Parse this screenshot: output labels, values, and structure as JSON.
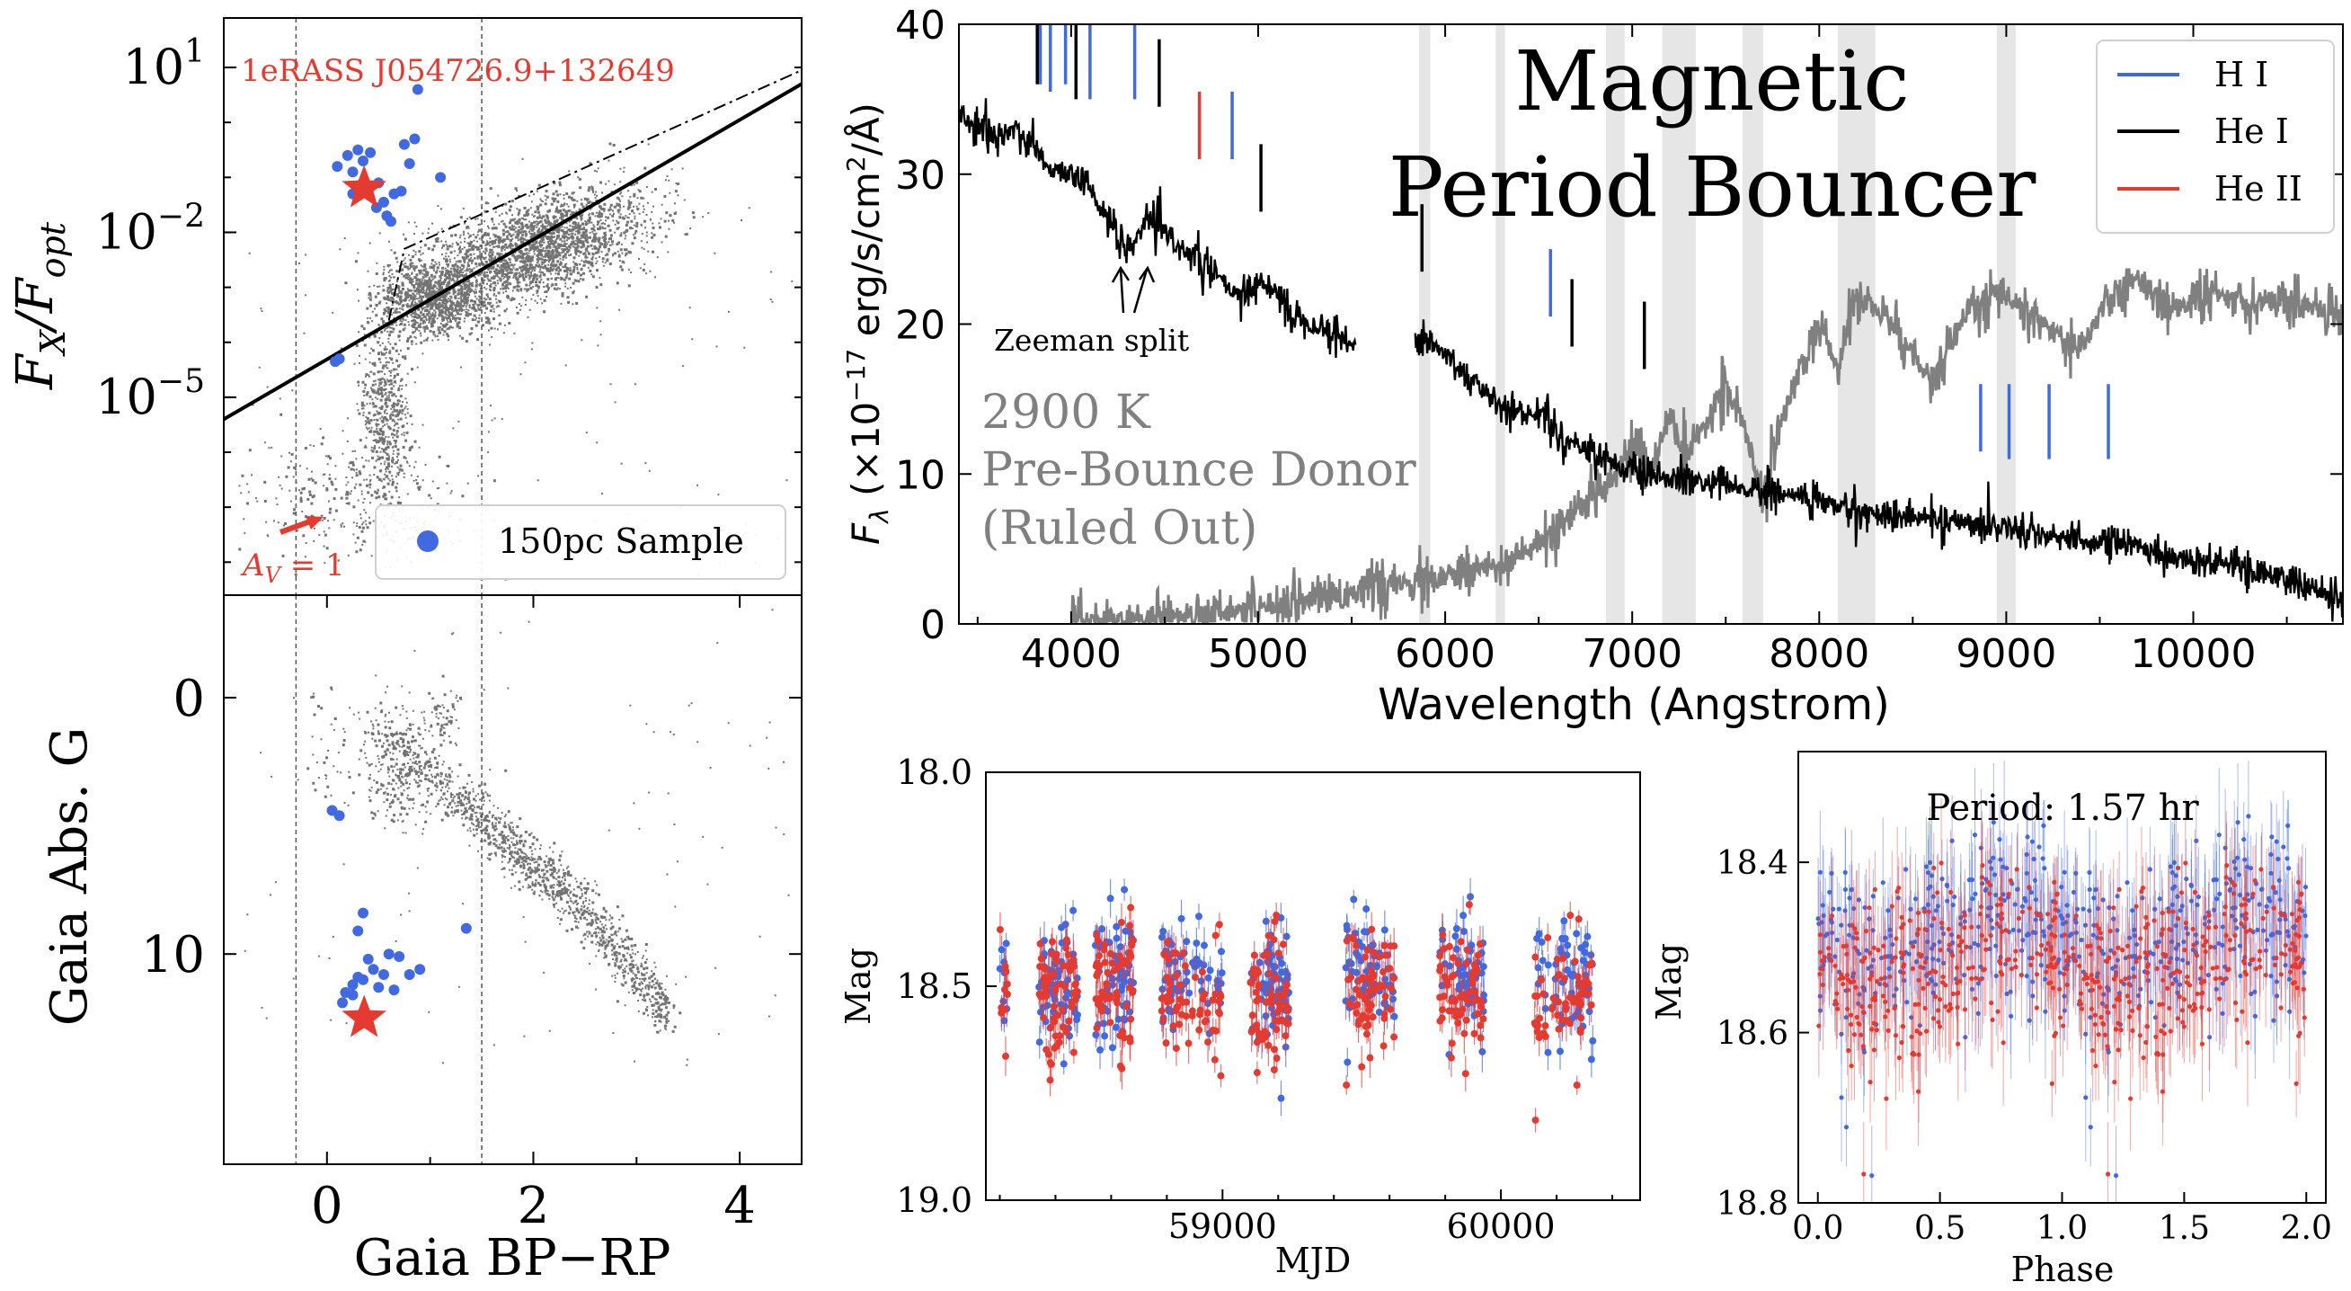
{
  "chart_data": [
    {
      "id": "xray_ratio",
      "type": "scatter",
      "ylabel_main": "F",
      "ylabel_sub1": "X",
      "ylabel_sep": "/F",
      "ylabel_sub2": "opt",
      "yscale": "log",
      "xlim": [
        -1,
        4.6
      ],
      "ylim_log10": [
        -8.6,
        1.9
      ],
      "yticks": [
        {
          "exp": 1,
          "text": "10",
          "sup": "1"
        },
        {
          "exp": -2,
          "text": "10",
          "sup": "−2"
        },
        {
          "exp": -5,
          "text": "10",
          "sup": "−5"
        }
      ],
      "vlines_x": [
        -0.3,
        1.5
      ],
      "threshold_solid": [
        [
          -1,
          -5.4
        ],
        [
          4.6,
          0.7
        ]
      ],
      "threshold_dashdot": [
        [
          0.6,
          -3.6
        ],
        [
          0.75,
          -2.3
        ],
        [
          4.6,
          0.95
        ]
      ],
      "target_label": "1eRASS J054726.9+132649",
      "target": {
        "x": 0.36,
        "y_log10": -1.2
      },
      "sample": [
        {
          "x": 0.1,
          "y": -0.8
        },
        {
          "x": 0.2,
          "y": -0.6
        },
        {
          "x": 0.25,
          "y": -0.9
        },
        {
          "x": 0.3,
          "y": -0.5
        },
        {
          "x": 0.35,
          "y": -0.7
        },
        {
          "x": 0.42,
          "y": -0.55
        },
        {
          "x": 0.5,
          "y": -1.1
        },
        {
          "x": 0.48,
          "y": -1.55
        },
        {
          "x": 0.55,
          "y": -1.45
        },
        {
          "x": 0.58,
          "y": -1.7
        },
        {
          "x": 0.62,
          "y": -1.8
        },
        {
          "x": 0.65,
          "y": -1.3
        },
        {
          "x": 0.72,
          "y": -1.25
        },
        {
          "x": 0.75,
          "y": -0.4
        },
        {
          "x": 0.8,
          "y": -0.75
        },
        {
          "x": 0.85,
          "y": -0.3
        },
        {
          "x": 0.88,
          "y": 0.6
        },
        {
          "x": 1.1,
          "y": -1.0
        },
        {
          "x": 0.25,
          "y": -1.3
        },
        {
          "x": 0.4,
          "y": -1.15
        },
        {
          "x": 0.12,
          "y": -4.3
        },
        {
          "x": 0.08,
          "y": -4.35
        }
      ],
      "av_label": "A",
      "av_sub": "V",
      "av_value": " = 1",
      "legend": [
        {
          "label": "150pc Sample",
          "marker": "circle",
          "color": "#4169e1"
        }
      ],
      "colors": {
        "sample": "#4169e1",
        "target": "#e53a30",
        "annotation": "#e53a30"
      }
    },
    {
      "id": "cmd",
      "type": "scatter",
      "xlabel": "Gaia BP−RP",
      "ylabel": "Gaia Abs. G",
      "xlim": [
        -1,
        4.6
      ],
      "ylim": [
        18.2,
        -4
      ],
      "xticks": [
        0,
        2,
        4
      ],
      "yticks": [
        0,
        10
      ],
      "vlines_x": [
        -0.3,
        1.5
      ],
      "target": {
        "x": 0.36,
        "y": 12.5
      },
      "sample": [
        {
          "x": 0.05,
          "y": 4.4
        },
        {
          "x": 0.12,
          "y": 4.6
        },
        {
          "x": 1.35,
          "y": 9.0
        },
        {
          "x": 0.25,
          "y": 11.2
        },
        {
          "x": 0.3,
          "y": 10.9
        },
        {
          "x": 0.18,
          "y": 11.5
        },
        {
          "x": 0.35,
          "y": 11.0
        },
        {
          "x": 0.4,
          "y": 10.2
        },
        {
          "x": 0.45,
          "y": 10.6
        },
        {
          "x": 0.5,
          "y": 11.3
        },
        {
          "x": 0.55,
          "y": 10.8
        },
        {
          "x": 0.6,
          "y": 10.0
        },
        {
          "x": 0.7,
          "y": 10.1
        },
        {
          "x": 0.8,
          "y": 10.8
        },
        {
          "x": 0.9,
          "y": 10.6
        },
        {
          "x": 0.3,
          "y": 9.1
        },
        {
          "x": 0.35,
          "y": 8.4
        },
        {
          "x": 0.25,
          "y": 11.6
        },
        {
          "x": 0.15,
          "y": 11.9
        },
        {
          "x": 0.65,
          "y": 11.4
        }
      ]
    },
    {
      "id": "spectrum",
      "type": "line",
      "xlabel": "Wavelength (Angstrom)",
      "ylabel_main": "F",
      "ylabel_sub": "λ",
      "ylabel_units": " (×10",
      "ylabel_sup1": "−17",
      "ylabel_units2": " erg/s/cm",
      "ylabel_sup2": "2",
      "ylabel_units3": "/Å)",
      "xlim": [
        3400,
        10800
      ],
      "ylim": [
        0,
        40
      ],
      "xticks": [
        4000,
        5000,
        6000,
        7000,
        8000,
        9000,
        10000
      ],
      "yticks": [
        0,
        10,
        20,
        30,
        40
      ],
      "title_line1": "Magnetic",
      "title_line2": "Period Bouncer",
      "annotation_zeeman": "Zeeman split",
      "donor_line1": "2900 K",
      "donor_line2": "Pre-Bounce Donor",
      "donor_line3": "(Ruled Out)",
      "legend": [
        {
          "label": "H I",
          "color": "#4169e1"
        },
        {
          "label": "He I",
          "color": "#000000"
        },
        {
          "label": "He II",
          "color": "#e53a30"
        }
      ],
      "object_spectrum_knots": [
        [
          3400,
          34
        ],
        [
          3500,
          33
        ],
        [
          3600,
          32.5
        ],
        [
          3700,
          33
        ],
        [
          3800,
          32
        ],
        [
          3900,
          30
        ],
        [
          4000,
          30.5
        ],
        [
          4100,
          29
        ],
        [
          4200,
          27
        ],
        [
          4300,
          24.5
        ],
        [
          4400,
          27
        ],
        [
          4500,
          26
        ],
        [
          4600,
          25
        ],
        [
          4700,
          24
        ],
        [
          4800,
          23
        ],
        [
          4900,
          21.5
        ],
        [
          5000,
          23
        ],
        [
          5100,
          22
        ],
        [
          5200,
          20.5
        ],
        [
          5300,
          20
        ],
        [
          5400,
          19.5
        ],
        [
          5500,
          18.5
        ],
        [
          5850,
          19.5
        ],
        [
          6000,
          18
        ],
        [
          6200,
          15.5
        ],
        [
          6400,
          14
        ],
        [
          6550,
          14
        ],
        [
          6600,
          12.5
        ],
        [
          6800,
          11.5
        ],
        [
          7000,
          10
        ],
        [
          7300,
          9.5
        ],
        [
          7600,
          9
        ],
        [
          7900,
          8.5
        ],
        [
          8200,
          7.5
        ],
        [
          8600,
          7
        ],
        [
          9000,
          6.5
        ],
        [
          9400,
          5.5
        ],
        [
          9600,
          5.5
        ],
        [
          9900,
          4.5
        ],
        [
          10200,
          4
        ],
        [
          10500,
          3
        ],
        [
          10800,
          1.5
        ]
      ],
      "donor_spectrum_knots": [
        [
          4000,
          0.2
        ],
        [
          4500,
          0.4
        ],
        [
          5000,
          1.2
        ],
        [
          5500,
          2.2
        ],
        [
          6000,
          3
        ],
        [
          6400,
          4.5
        ],
        [
          6600,
          6
        ],
        [
          6700,
          7.5
        ],
        [
          6900,
          10
        ],
        [
          7000,
          12
        ],
        [
          7100,
          10
        ],
        [
          7200,
          14
        ],
        [
          7300,
          11
        ],
        [
          7500,
          16
        ],
        [
          7600,
          13
        ],
        [
          7700,
          8
        ],
        [
          7800,
          14
        ],
        [
          8000,
          20
        ],
        [
          8100,
          17
        ],
        [
          8200,
          22
        ],
        [
          8400,
          20
        ],
        [
          8600,
          16
        ],
        [
          8800,
          21
        ],
        [
          9000,
          22
        ],
        [
          9200,
          20
        ],
        [
          9400,
          18
        ],
        [
          9500,
          21
        ],
        [
          9700,
          23
        ],
        [
          9900,
          21
        ],
        [
          10100,
          22
        ],
        [
          10400,
          21.5
        ],
        [
          10800,
          21
        ]
      ],
      "line_markers": [
        {
          "x": 3835,
          "ylo": 36,
          "yhi": 40,
          "color": "#4169e1"
        },
        {
          "x": 3889,
          "ylo": 35.5,
          "yhi": 40,
          "color": "#4169e1"
        },
        {
          "x": 3970,
          "ylo": 36,
          "yhi": 40,
          "color": "#4169e1"
        },
        {
          "x": 4101,
          "ylo": 35,
          "yhi": 40,
          "color": "#4169e1"
        },
        {
          "x": 4340,
          "ylo": 35,
          "yhi": 40,
          "color": "#4169e1"
        },
        {
          "x": 4861,
          "ylo": 31,
          "yhi": 35.5,
          "color": "#4169e1"
        },
        {
          "x": 6563,
          "ylo": 20.5,
          "yhi": 25,
          "color": "#4169e1"
        },
        {
          "x": 8863,
          "ylo": 11.5,
          "yhi": 16,
          "color": "#4169e1"
        },
        {
          "x": 9015,
          "ylo": 11,
          "yhi": 16,
          "color": "#4169e1"
        },
        {
          "x": 9229,
          "ylo": 11,
          "yhi": 16,
          "color": "#4169e1"
        },
        {
          "x": 9546,
          "ylo": 11,
          "yhi": 16,
          "color": "#4169e1"
        },
        {
          "x": 3819,
          "ylo": 36,
          "yhi": 40,
          "color": "#000000"
        },
        {
          "x": 4026,
          "ylo": 35,
          "yhi": 40,
          "color": "#000000"
        },
        {
          "x": 4471,
          "ylo": 34.5,
          "yhi": 39,
          "color": "#000000"
        },
        {
          "x": 5015,
          "ylo": 27.5,
          "yhi": 32,
          "color": "#000000"
        },
        {
          "x": 5876,
          "ylo": 23.5,
          "yhi": 28,
          "color": "#000000"
        },
        {
          "x": 6678,
          "ylo": 18.5,
          "yhi": 23,
          "color": "#000000"
        },
        {
          "x": 7065,
          "ylo": 17,
          "yhi": 21.5,
          "color": "#000000"
        },
        {
          "x": 4686,
          "ylo": 31,
          "yhi": 35.5,
          "color": "#e53a30"
        }
      ],
      "telluric_bands": [
        [
          5860,
          5920
        ],
        [
          6270,
          6320
        ],
        [
          6860,
          6960
        ],
        [
          7160,
          7340
        ],
        [
          7590,
          7700
        ],
        [
          8100,
          8300
        ],
        [
          8950,
          9050
        ]
      ]
    },
    {
      "id": "lightcurve",
      "type": "scatter",
      "xlabel": "MJD",
      "ylabel": "Mag",
      "xlim": [
        58150,
        60500
      ],
      "ylim": [
        19.0,
        18.0
      ],
      "xticks": [
        59000,
        60000
      ],
      "yticks": [
        {
          "v": 18.0,
          "t": "18.0"
        },
        {
          "v": 18.5,
          "t": "18.5"
        },
        {
          "v": 19.0,
          "t": "19.0"
        }
      ],
      "clusters_mjd": [
        [
          58200,
          58230
        ],
        [
          58340,
          58480
        ],
        [
          58540,
          58680
        ],
        [
          58780,
          59000
        ],
        [
          59100,
          59240
        ],
        [
          59440,
          59620
        ],
        [
          59780,
          59940
        ],
        [
          60120,
          60330
        ]
      ],
      "mag_mean": 18.5,
      "mag_scatter": 0.07,
      "series": [
        {
          "name": "",
          "color": "#4169e1"
        },
        {
          "name": "",
          "color": "#e53a30"
        }
      ]
    },
    {
      "id": "phased",
      "type": "scatter",
      "xlabel": "Phase",
      "ylabel": "Mag",
      "annotation": "Period: 1.57 hr",
      "xlim": [
        -0.08,
        2.08
      ],
      "ylim": [
        18.8,
        18.27
      ],
      "xticks": [
        {
          "v": 0.0,
          "t": "0.0"
        },
        {
          "v": 0.5,
          "t": "0.5"
        },
        {
          "v": 1.0,
          "t": "1.0"
        },
        {
          "v": 1.5,
          "t": "1.5"
        },
        {
          "v": 2.0,
          "t": "2.0"
        }
      ],
      "yticks": [
        {
          "v": 18.4,
          "t": "18.4"
        },
        {
          "v": 18.6,
          "t": "18.6"
        },
        {
          "v": 18.8,
          "t": "18.8"
        }
      ],
      "mag_mean": 18.5,
      "amplitude": 0.025,
      "series": [
        {
          "name": "",
          "color": "#4169e1"
        },
        {
          "name": "",
          "color": "#e53a30"
        }
      ]
    }
  ]
}
